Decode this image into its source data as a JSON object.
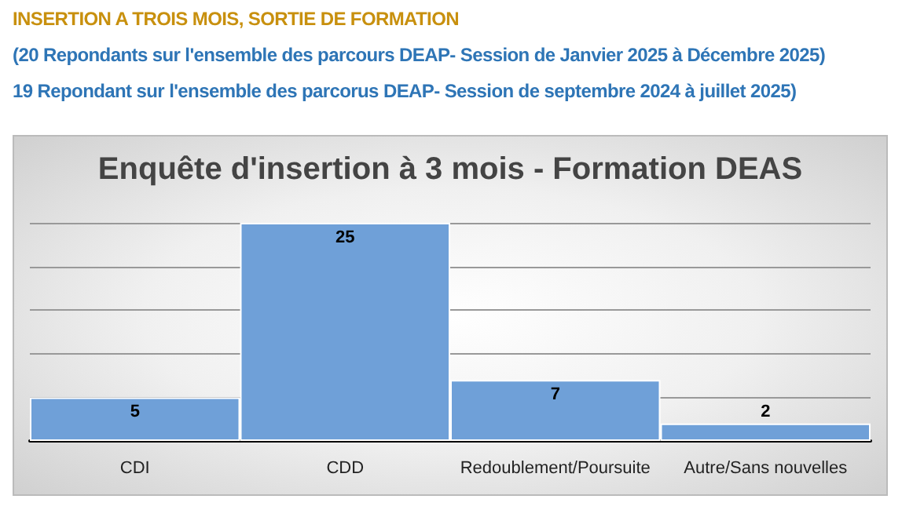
{
  "chart_data": {
    "type": "bar",
    "title": "Enquête d'insertion à 3 mois - Formation DEAS",
    "annotations": [
      "INSERTION A TROIS MOIS, SORTIE DE FORMATION",
      "(20 Repondants sur l'ensemble des parcours DEAP- Session de Janvier 2025 à Décembre 2025)",
      "19 Repondant sur l'ensemble des parcorus DEAP- Session de septembre 2024 à juillet 2025)"
    ],
    "categories": [
      "CDI",
      "CDD",
      "Redoublement/Poursuite",
      "Autre/Sans nouvelles"
    ],
    "values": [
      5,
      25,
      7,
      2
    ],
    "color": "#6fa0d8",
    "ylim": [
      0,
      25
    ],
    "yticks": [
      0,
      5,
      10,
      15,
      20,
      25
    ],
    "grid": "y",
    "tick_labels": "x",
    "data_labels": true
  }
}
